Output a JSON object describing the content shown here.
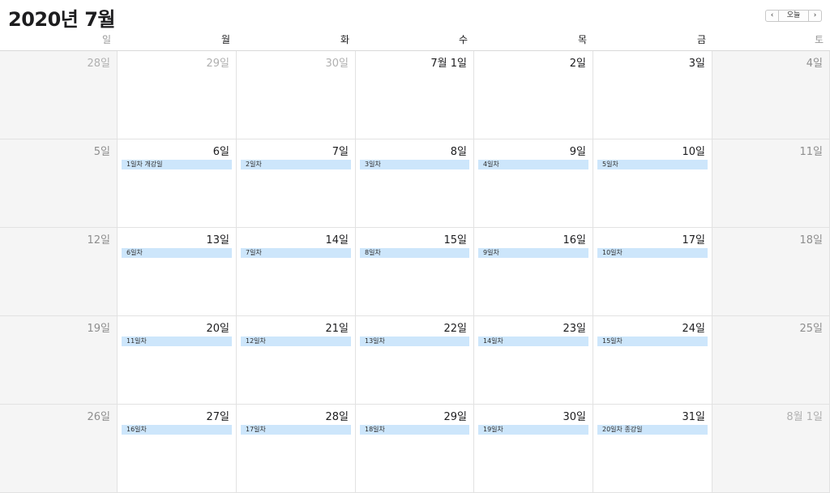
{
  "header": {
    "title": "2020년 7월",
    "today_label": "오늘",
    "prev_icon": "chevron-left-icon",
    "next_icon": "chevron-right-icon"
  },
  "weekdays": [
    "일",
    "월",
    "화",
    "수",
    "목",
    "금",
    "토"
  ],
  "weeks": [
    [
      {
        "day": "28일",
        "other": true
      },
      {
        "day": "29일",
        "other": true
      },
      {
        "day": "30일",
        "other": true
      },
      {
        "day": "7월 1일"
      },
      {
        "day": "2일"
      },
      {
        "day": "3일"
      },
      {
        "day": "4일"
      }
    ],
    [
      {
        "day": "5일"
      },
      {
        "day": "6일",
        "event": "1일차 개강일"
      },
      {
        "day": "7일",
        "event": "2일차"
      },
      {
        "day": "8일",
        "event": "3일차"
      },
      {
        "day": "9일",
        "event": "4일차"
      },
      {
        "day": "10일",
        "event": "5일차"
      },
      {
        "day": "11일"
      }
    ],
    [
      {
        "day": "12일"
      },
      {
        "day": "13일",
        "event": "6일차"
      },
      {
        "day": "14일",
        "event": "7일차"
      },
      {
        "day": "15일",
        "event": "8일차"
      },
      {
        "day": "16일",
        "event": "9일차"
      },
      {
        "day": "17일",
        "event": "10일차"
      },
      {
        "day": "18일"
      }
    ],
    [
      {
        "day": "19일"
      },
      {
        "day": "20일",
        "event": "11일차"
      },
      {
        "day": "21일",
        "event": "12일차"
      },
      {
        "day": "22일",
        "event": "13일차"
      },
      {
        "day": "23일",
        "event": "14일차"
      },
      {
        "day": "24일",
        "event": "15일차"
      },
      {
        "day": "25일"
      }
    ],
    [
      {
        "day": "26일"
      },
      {
        "day": "27일",
        "event": "16일차"
      },
      {
        "day": "28일",
        "event": "17일차"
      },
      {
        "day": "29일",
        "event": "18일차"
      },
      {
        "day": "30일",
        "event": "19일차"
      },
      {
        "day": "31일",
        "event": "20일차  종강일"
      },
      {
        "day": "8월 1일",
        "other": true
      }
    ]
  ]
}
